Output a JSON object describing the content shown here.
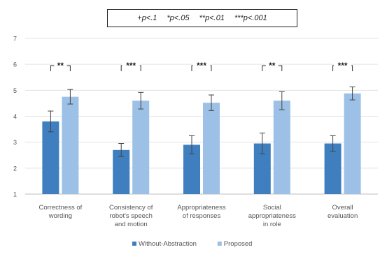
{
  "significance_key": [
    "+p<.1",
    "*p<.05",
    "**p<.01",
    "***p<.001"
  ],
  "chart_data": {
    "type": "bar",
    "categories": [
      "Correctness of wording",
      "Consistency of robot's speech and motion",
      "Appropriateness of responses",
      "Social appropriateness in role",
      "Overall evaluation"
    ],
    "category_lines": [
      [
        "Correctness of",
        "wording"
      ],
      [
        "Consistency of",
        "robot's speech",
        "and motion"
      ],
      [
        "Appropriateness",
        "of responses"
      ],
      [
        "Social",
        "appropriateness",
        "in role"
      ],
      [
        "Overall",
        "evaluation"
      ]
    ],
    "series": [
      {
        "name": "Without-Abstraction",
        "values": [
          3.8,
          2.7,
          2.9,
          2.95,
          2.95
        ],
        "errors": [
          0.4,
          0.25,
          0.35,
          0.4,
          0.3
        ],
        "color": "#3f7fbf"
      },
      {
        "name": "Proposed",
        "values": [
          4.75,
          4.6,
          4.52,
          4.6,
          4.88
        ],
        "errors": [
          0.28,
          0.32,
          0.3,
          0.35,
          0.25
        ],
        "color": "#9dc0e6"
      }
    ],
    "significance": [
      "**",
      "***",
      "***",
      "**",
      "***"
    ],
    "ylim": [
      1,
      7
    ],
    "yticks": [
      1,
      2,
      3,
      4,
      5,
      6,
      7
    ],
    "title": "",
    "xlabel": "",
    "ylabel": "",
    "grid": true,
    "legend_position": "bottom"
  }
}
